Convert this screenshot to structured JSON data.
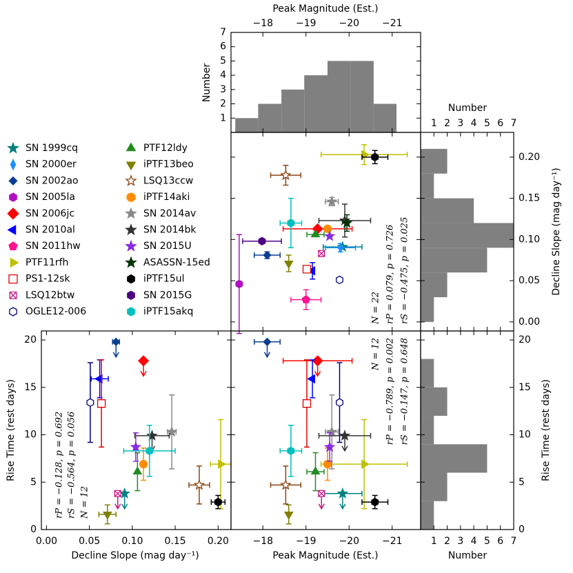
{
  "chart_data": {
    "type": "scatter-matrix",
    "axes": {
      "peak": {
        "label": "Peak Magnitude (Est.)",
        "lim": [
          -17.26,
          -21.66
        ],
        "ticks": [
          {
            "value": -18,
            "label": "−18"
          },
          {
            "value": -19,
            "label": "−19"
          },
          {
            "value": -20,
            "label": "−20"
          },
          {
            "value": -21,
            "label": "−21"
          }
        ]
      },
      "decline": {
        "label": "Decline Slope (mag day⁻¹)",
        "xlim": [
          -0.006,
          0.215
        ],
        "ylim": [
          -0.011,
          0.23
        ],
        "ticks": [
          {
            "value": 0,
            "label": "0.00"
          },
          {
            "value": 0.05,
            "label": "0.05"
          },
          {
            "value": 0.1,
            "label": "0.10"
          },
          {
            "value": 0.15,
            "label": "0.15"
          },
          {
            "value": 0.2,
            "label": "0.20"
          }
        ]
      },
      "rise": {
        "label": "Rise Time (rest days)",
        "lim": [
          0,
          20.95
        ],
        "ticks": [
          0,
          5,
          10,
          15,
          20
        ]
      },
      "count": {
        "label": "Number",
        "lim": [
          0,
          7
        ],
        "ticks": [
          1,
          2,
          3,
          4,
          5,
          6,
          7
        ]
      }
    },
    "histograms": {
      "color": "#808080",
      "peak": {
        "bins": [
          -17.36,
          -17.89,
          -18.43,
          -18.96,
          -19.5,
          -20.03,
          -20.57,
          -21.1
        ],
        "counts": [
          1,
          2,
          3,
          4,
          5,
          5,
          2
        ]
      },
      "decline": {
        "bins": [
          0,
          0.03,
          0.06,
          0.09,
          0.12,
          0.15,
          0.18,
          0.21
        ],
        "counts": [
          1,
          2,
          5,
          7,
          4,
          1,
          2
        ]
      },
      "rise": {
        "bins": [
          0,
          3,
          6,
          9,
          12,
          15,
          18
        ],
        "counts": [
          1,
          2,
          5,
          1,
          2,
          1
        ]
      }
    },
    "supernovae": [
      {
        "name": "SN 1999cq",
        "color": "#008080",
        "marker": "star",
        "filled": true,
        "peak": -19.85,
        "peak_err": 0.45,
        "decline": 0.091,
        "decline_err": null,
        "rise": 3.8,
        "rise_err": null,
        "rise_upper_limit": true
      },
      {
        "name": "SN 2000er",
        "color": "#1e90ff",
        "marker": "thin_diamond",
        "filled": true,
        "peak": -19.8,
        "peak_err": 0.35,
        "decline": 0.09,
        "decline_err": 0.005,
        "rise": null,
        "rise_err": null,
        "rise_upper_limit": false
      },
      {
        "name": "SN 2002ao",
        "color": "#0b3d91",
        "marker": "diamond",
        "filled": true,
        "peak": -18.1,
        "peak_err": 0.3,
        "decline": 0.081,
        "decline_err": 0.004,
        "rise": 19.8,
        "rise_err": null,
        "rise_upper_limit": true
      },
      {
        "name": "SN 2005la",
        "color": "#b010c0",
        "marker": "hexagon",
        "filled": true,
        "peak": -17.45,
        "peak_err": null,
        "decline": 0.046,
        "decline_err": 0.06,
        "rise": null,
        "rise_err": null,
        "rise_upper_limit": false
      },
      {
        "name": "SN 2006jc",
        "color": "#ff0000",
        "marker": "big_diamond",
        "filled": true,
        "peak": -19.27,
        "peak_err": 0.8,
        "decline": 0.113,
        "decline_err": null,
        "rise": 17.8,
        "rise_err": null,
        "rise_upper_limit": true
      },
      {
        "name": "SN 2010al",
        "color": "#0000ff",
        "marker": "tri_left",
        "filled": true,
        "peak": -19.15,
        "peak_err": null,
        "decline": 0.062,
        "decline_err": 0.01,
        "rise": 15.9,
        "rise_err": 2.0,
        "rise_upper_limit": false
      },
      {
        "name": "SN 2011hw",
        "color": "#ff1493",
        "marker": "pentagon",
        "filled": true,
        "peak": -19.0,
        "peak_err": 0.35,
        "decline": 0.027,
        "decline_err": 0.012,
        "rise": null,
        "rise_err": null,
        "rise_upper_limit": false
      },
      {
        "name": "PTF11rfh",
        "color": "#bfbf00",
        "marker": "tri_right",
        "filled": true,
        "peak": -20.35,
        "peak_err": 1.0,
        "decline": 0.203,
        "decline_err": 0.012,
        "rise": 6.9,
        "rise_err": 4.7,
        "rise_upper_limit": false
      },
      {
        "name": "PS1-12sk",
        "color": "#dd0000",
        "marker": "square",
        "filled": false,
        "peak": -19.02,
        "peak_err": null,
        "decline": 0.064,
        "decline_err": null,
        "rise": 13.3,
        "rise_err": 4.6,
        "rise_upper_limit": false
      },
      {
        "name": "LSQ12btw",
        "color": "#c71585",
        "marker": "square_x",
        "filled": false,
        "peak": -19.36,
        "peak_err": null,
        "decline": 0.083,
        "decline_err": null,
        "rise": 3.8,
        "rise_err": null,
        "rise_upper_limit": true
      },
      {
        "name": "OGLE12-006",
        "color": "#000080",
        "marker": "hexagon",
        "filled": false,
        "peak": -19.78,
        "peak_err": null,
        "decline": 0.051,
        "decline_err": null,
        "rise": 13.4,
        "rise_err": 4.2,
        "rise_upper_limit": false
      },
      {
        "name": "PTF12ldy",
        "color": "#228b22",
        "marker": "tri_up",
        "filled": true,
        "peak": -19.22,
        "peak_err": 0.2,
        "decline": 0.106,
        "decline_err": null,
        "rise": 6.1,
        "rise_err": 2.0,
        "rise_upper_limit": false
      },
      {
        "name": "iPTF13beo",
        "color": "#808000",
        "marker": "tri_down",
        "filled": true,
        "peak": -18.6,
        "peak_err": null,
        "decline": 0.071,
        "decline_err": 0.01,
        "rise": 1.6,
        "rise_err": 1.0,
        "rise_upper_limit": false
      },
      {
        "name": "LSQ13ccw",
        "color": "#8b4513",
        "marker": "star",
        "filled": false,
        "peak": -18.53,
        "peak_err": 0.35,
        "decline": 0.178,
        "decline_err": 0.012,
        "rise": 4.7,
        "rise_err": 2.0,
        "rise_upper_limit": false
      },
      {
        "name": "iPTF14aki",
        "color": "#ff8c00",
        "marker": "circle",
        "filled": true,
        "peak": -19.5,
        "peak_err": null,
        "decline": 0.113,
        "decline_err": null,
        "rise": 6.9,
        "rise_err": 1.7,
        "rise_upper_limit": false
      },
      {
        "name": "SN 2014av",
        "color": "#888888",
        "marker": "star",
        "filled": true,
        "peak": -19.6,
        "peak_err": 0.15,
        "decline": 0.146,
        "decline_err": 0.005,
        "rise": 10.3,
        "rise_err": 3.9,
        "rise_upper_limit": false
      },
      {
        "name": "SN 2014bk",
        "color": "#333333",
        "marker": "star",
        "filled": true,
        "peak": -19.9,
        "peak_err": 0.6,
        "decline": 0.123,
        "decline_err": 0.02,
        "rise": 9.9,
        "rise_err": null,
        "rise_upper_limit": true
      },
      {
        "name": "SN 2015U",
        "color": "#8a2be2",
        "marker": "star",
        "filled": true,
        "peak": -19.55,
        "peak_err": null,
        "decline": 0.104,
        "decline_err": null,
        "rise": 8.7,
        "rise_err": 1.5,
        "rise_upper_limit": false
      },
      {
        "name": "ASASSN-15ed",
        "color": "#003300",
        "marker": "star",
        "filled": true,
        "peak": -19.95,
        "peak_err": null,
        "decline": 0.12,
        "decline_err": 0.01,
        "rise": null,
        "rise_err": null,
        "rise_upper_limit": false
      },
      {
        "name": "iPTF15ul",
        "color": "#000000",
        "marker": "hexagon",
        "filled": true,
        "peak": -20.6,
        "peak_err": 0.3,
        "decline": 0.2,
        "decline_err": 0.008,
        "rise": 2.9,
        "rise_err": 0.7,
        "rise_upper_limit": false
      },
      {
        "name": "SN 2015G",
        "color": "#4b0082",
        "marker": "hexagon",
        "filled": true,
        "peak": -17.98,
        "peak_err": 0.45,
        "decline": 0.098,
        "decline_err": null,
        "rise": null,
        "rise_err": null,
        "rise_upper_limit": false
      },
      {
        "name": "iPTF15akq",
        "color": "#00bfbf",
        "marker": "hexagon",
        "filled": true,
        "peak": -18.65,
        "peak_err": 0.25,
        "decline": 0.12,
        "decline_err": 0.03,
        "rise": 8.3,
        "rise_err": 2.7,
        "rise_upper_limit": false
      }
    ],
    "annotations": {
      "center": [
        "N = 22",
        "rP = 0.079, p = 0.726",
        "rS = −0.475, p = 0.025"
      ],
      "bottom_left": [
        "rP = −0.128, p = 0.692",
        "rS = −0.564, p = 0.056",
        "N = 12"
      ],
      "bottom_middle": [
        "N = 12",
        "rP = −0.789, p = 0.002",
        "rS = −0.147, p = 0.648"
      ]
    }
  }
}
